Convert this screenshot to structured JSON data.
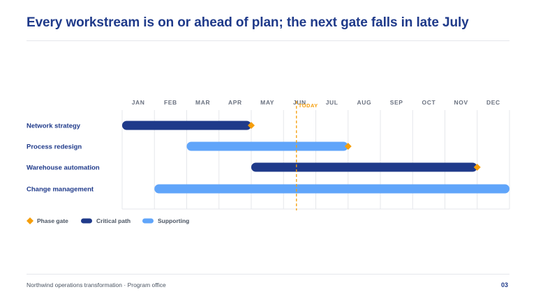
{
  "header": {
    "title": "Every workstream is on or ahead of plan; the next gate falls in late July"
  },
  "chart_data": {
    "type": "gantt",
    "months": [
      "JAN",
      "FEB",
      "MAR",
      "APR",
      "MAY",
      "JUN",
      "JUL",
      "AUG",
      "SEP",
      "OCT",
      "NOV",
      "DEC"
    ],
    "today": {
      "label": "TODAY",
      "month": 5.4
    },
    "tasks": [
      {
        "name": "Network strategy",
        "start": 0.0,
        "end": 4.0,
        "type": "critical",
        "gate": 4.0
      },
      {
        "name": "Process redesign",
        "start": 2.0,
        "end": 7.0,
        "type": "supporting",
        "gate": 7.0
      },
      {
        "name": "Warehouse automation",
        "start": 4.0,
        "end": 11.0,
        "type": "critical",
        "gate": 11.0
      },
      {
        "name": "Change management",
        "start": 1.0,
        "end": 12.0,
        "type": "supporting",
        "gate": null
      }
    ],
    "legend": [
      {
        "label": "Phase gate",
        "kind": "gate"
      },
      {
        "label": "Critical path",
        "kind": "critical"
      },
      {
        "label": "Supporting",
        "kind": "supporting"
      }
    ],
    "colors": {
      "critical": "#1f3a8a",
      "supporting": "#60a5fa",
      "gate": "#f59e0b",
      "today": "#f59e0b",
      "grid": "#e5e7eb",
      "month_label": "#6b7280",
      "task_label": "#1f3a8a"
    }
  },
  "footer": {
    "left": "Northwind operations transformation · Program office",
    "page_number": "03"
  }
}
